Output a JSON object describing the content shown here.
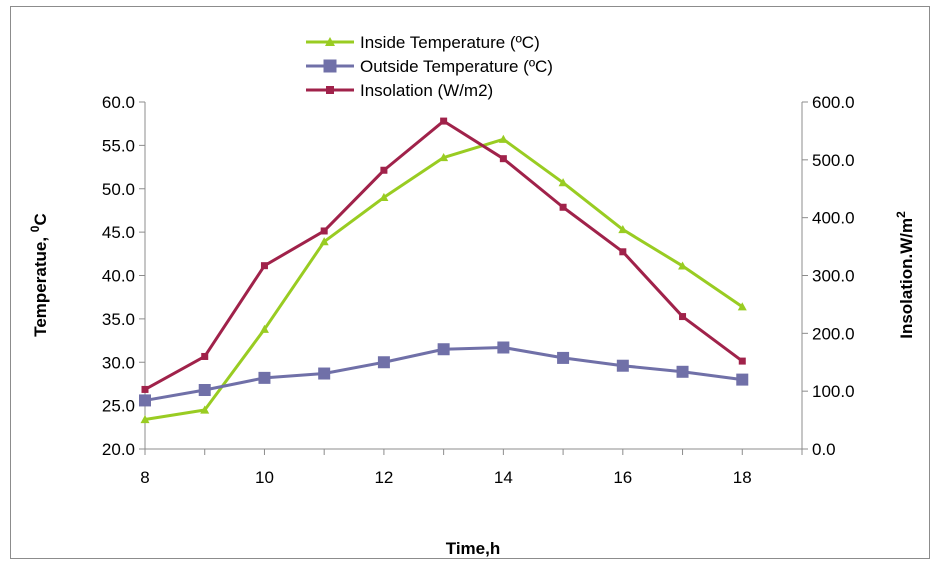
{
  "chart_data": {
    "type": "line",
    "x": [
      8,
      9,
      10,
      11,
      12,
      13,
      14,
      15,
      16,
      17,
      18
    ],
    "xlabel": "Time,h",
    "ylabel": "Temperatue, ",
    "ylabel_unit": "C",
    "ylabel_sup": "0",
    "y2label": "Insolation.W/m",
    "y2label_sup": "2",
    "xlim": [
      8,
      19
    ],
    "xticks": [
      "8",
      "10",
      "12",
      "14",
      "16",
      "18"
    ],
    "ylim": [
      20,
      60
    ],
    "yticks": [
      "20.0",
      "25.0",
      "30.0",
      "35.0",
      "40.0",
      "45.0",
      "50.0",
      "55.0",
      "60.0"
    ],
    "y2lim": [
      0,
      600
    ],
    "y2ticks": [
      "0.0",
      "100.0",
      "200.0",
      "300.0",
      "400.0",
      "500.0",
      "600.0"
    ],
    "grid": false,
    "legend_position": "top-center",
    "series": [
      {
        "name": "Inside Temperature (ºC)",
        "axis": "left",
        "color": "#99CC22",
        "marker": "triangle",
        "values": [
          23.4,
          24.5,
          33.8,
          43.9,
          49.0,
          53.6,
          55.7,
          50.7,
          45.3,
          41.1,
          36.4
        ]
      },
      {
        "name": "Outside Temperature (ºC)",
        "axis": "left",
        "color": "#7070A8",
        "marker": "square",
        "values": [
          25.6,
          26.8,
          28.2,
          28.7,
          30.0,
          31.5,
          31.7,
          30.5,
          29.6,
          28.9,
          28.0
        ]
      },
      {
        "name": "Insolation (W/m2)",
        "axis": "right",
        "color": "#A0224A",
        "marker": "square",
        "values": [
          103,
          160,
          317,
          377,
          482,
          567,
          502,
          418,
          341,
          229,
          152
        ]
      }
    ]
  }
}
